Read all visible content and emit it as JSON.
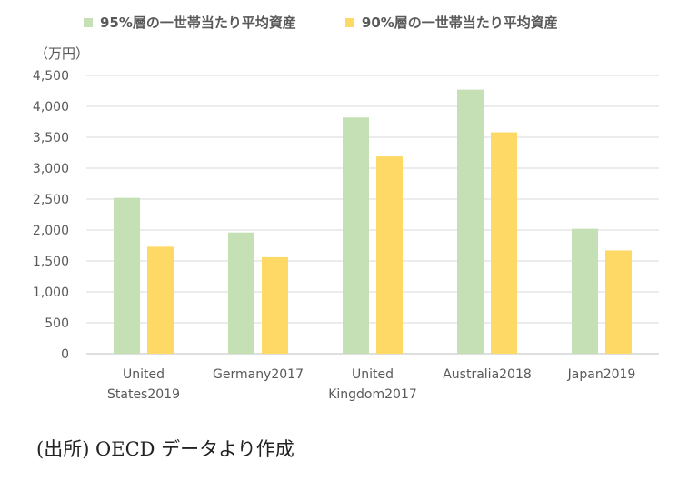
{
  "legend": {
    "series1": "95%層の一世帯当たり平均資産",
    "series2": "90%層の一世帯当たり平均資産"
  },
  "unit_label": "（万円）",
  "source_note": "(出所) OECD データより作成",
  "colors": {
    "series1": "#c5e0b4",
    "series2": "#ffd966",
    "grid": "#d9d9d9",
    "axis_text": "#595959"
  },
  "chart_data": {
    "type": "bar",
    "categories": [
      [
        "United",
        "States2019"
      ],
      [
        "Germany2017"
      ],
      [
        "United",
        "Kingdom2017"
      ],
      [
        "Australia2018"
      ],
      [
        "Japan2019"
      ]
    ],
    "series": [
      {
        "name": "95%層の一世帯当たり平均資産",
        "values": [
          2520,
          1960,
          3820,
          4270,
          2020
        ]
      },
      {
        "name": "90%層の一世帯当たり平均資産",
        "values": [
          1730,
          1560,
          3190,
          3580,
          1670
        ]
      }
    ],
    "ylim": [
      0,
      4500
    ],
    "yticks": [
      "0",
      "500",
      "1,000",
      "1,500",
      "2,000",
      "2,500",
      "3,000",
      "3,500",
      "4,000",
      "4,500"
    ],
    "grid": true,
    "legend_position": "top"
  }
}
